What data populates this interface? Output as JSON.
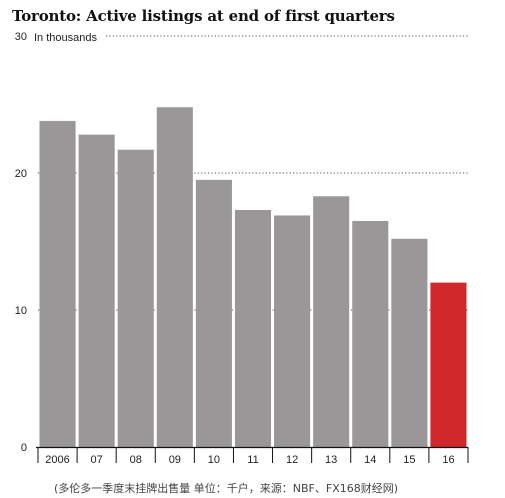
{
  "chart_data": {
    "type": "bar",
    "title": "Toronto: Active listings at end of first quarters",
    "ylabel": "In thousands",
    "xlabel": "",
    "ylim": [
      0,
      30
    ],
    "yticks": [
      0,
      10,
      20,
      30
    ],
    "grid": true,
    "categories": [
      "2006",
      "07",
      "08",
      "09",
      "10",
      "11",
      "12",
      "13",
      "14",
      "15",
      "16"
    ],
    "values": [
      23.8,
      22.8,
      21.7,
      24.8,
      19.5,
      17.3,
      16.9,
      18.3,
      16.5,
      15.2,
      12.0
    ],
    "colors": {
      "bar": "#999798",
      "highlight": "#d1292b",
      "axis": "#111111",
      "grid": "#555555",
      "text": "#222222"
    },
    "highlight_index": 10
  },
  "source_note": "(多伦多一季度末挂牌出售量 单位：千户，来源：NBF、FX168财经网)"
}
